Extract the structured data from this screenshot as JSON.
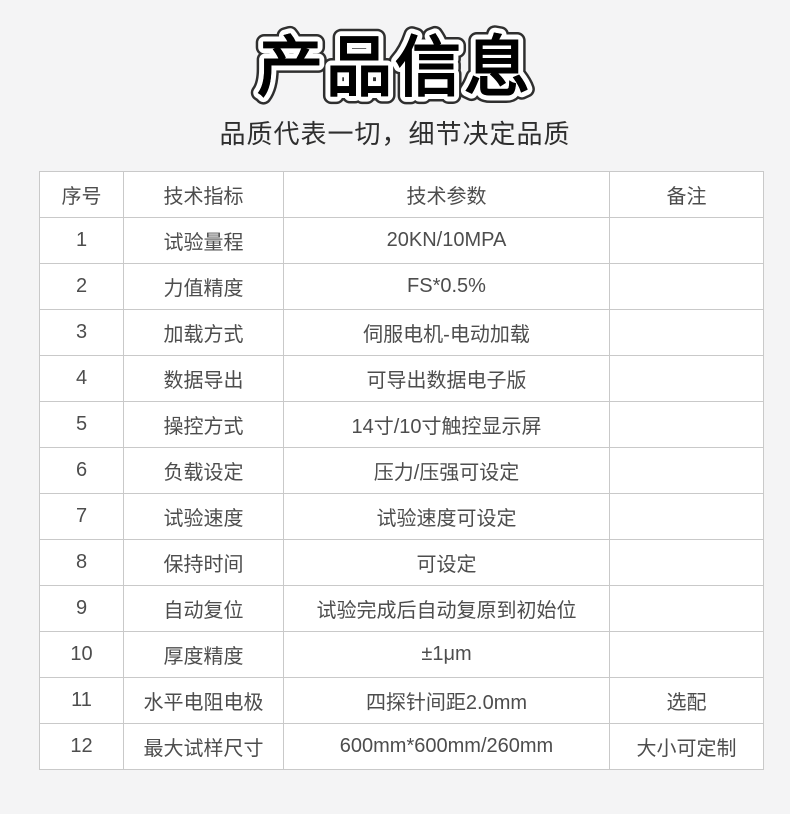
{
  "header": {
    "title": "产品信息",
    "subtitle": "品质代表一切，细节决定品质"
  },
  "table": {
    "columns": [
      "序号",
      "技术指标",
      "技术参数",
      "备注"
    ],
    "rows": [
      {
        "no": "1",
        "indicator": "试验量程",
        "parameter": "20KN/10MPA",
        "remark": ""
      },
      {
        "no": "2",
        "indicator": "力值精度",
        "parameter": "FS*0.5%",
        "remark": ""
      },
      {
        "no": "3",
        "indicator": "加载方式",
        "parameter": "伺服电机-电动加载",
        "remark": ""
      },
      {
        "no": "4",
        "indicator": "数据导出",
        "parameter": "可导出数据电子版",
        "remark": ""
      },
      {
        "no": "5",
        "indicator": "操控方式",
        "parameter": "14寸/10寸触控显示屏",
        "remark": ""
      },
      {
        "no": "6",
        "indicator": "负载设定",
        "parameter": "压力/压强可设定",
        "remark": ""
      },
      {
        "no": "7",
        "indicator": "试验速度",
        "parameter": "试验速度可设定",
        "remark": ""
      },
      {
        "no": "8",
        "indicator": "保持时间",
        "parameter": "可设定",
        "remark": ""
      },
      {
        "no": "9",
        "indicator": "自动复位",
        "parameter": "试验完成后自动复原到初始位",
        "remark": ""
      },
      {
        "no": "10",
        "indicator": "厚度精度",
        "parameter": "±1μm",
        "remark": ""
      },
      {
        "no": "11",
        "indicator": "水平电阻电极",
        "parameter": "四探针间距2.0mm",
        "remark": "选配"
      },
      {
        "no": "12",
        "indicator": "最大试样尺寸",
        "parameter": "600mm*600mm/260mm",
        "remark": "大小可定制"
      }
    ]
  },
  "colors": {
    "page_background": "#f4f4f5",
    "cell_background": "#ffffff",
    "border": "#c9c9c9",
    "text": "#4d4d4d",
    "title_fill": "#000000",
    "title_outline_inner": "#ffffff",
    "title_outline_outer": "#2f2f2f"
  }
}
